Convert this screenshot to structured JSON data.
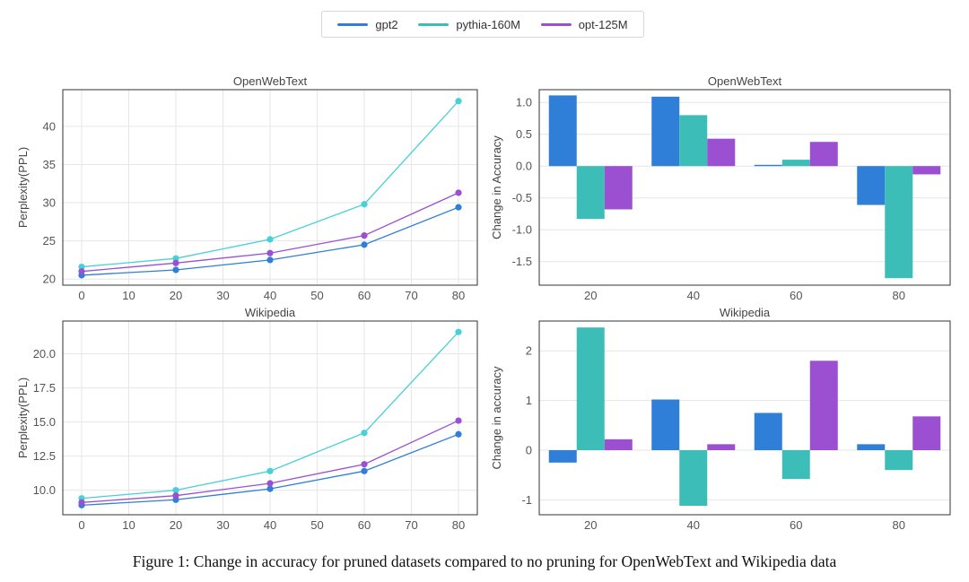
{
  "colors": {
    "gpt2": "#2f7ed8",
    "pythia": "#3dbdb8",
    "opt": "#9b4fd1",
    "pythia_line": "#46d0d8",
    "grid": "#e6e6e6"
  },
  "legend": [
    {
      "label": "gpt2",
      "color": "#2f7ed8"
    },
    {
      "label": "pythia-160M",
      "color": "#3dbdb8"
    },
    {
      "label": "opt-125M",
      "color": "#9b4fd1"
    }
  ],
  "caption": "Figure 1: Change in accuracy for pruned datasets compared to no pruning for OpenWebText and Wikipedia data",
  "chart_data": [
    {
      "id": "ppl-owt",
      "type": "line",
      "title": "OpenWebText",
      "xlabel": "",
      "ylabel": "Perplexity(PPL)",
      "x": [
        0,
        20,
        40,
        60,
        80
      ],
      "xlim": [
        -4,
        84
      ],
      "xticks": [
        0,
        10,
        20,
        30,
        40,
        50,
        60,
        70,
        80
      ],
      "ylim": [
        19.2,
        44.8
      ],
      "yticks": [
        20,
        25,
        30,
        35,
        40
      ],
      "grid": true,
      "series": [
        {
          "name": "gpt2",
          "values": [
            20.5,
            21.2,
            22.5,
            24.5,
            29.4
          ]
        },
        {
          "name": "pythia-160M",
          "values": [
            21.6,
            22.7,
            25.2,
            29.8,
            43.3
          ]
        },
        {
          "name": "opt-125M",
          "values": [
            21.0,
            22.1,
            23.4,
            25.7,
            31.3
          ]
        }
      ]
    },
    {
      "id": "acc-owt",
      "type": "bar",
      "title": "OpenWebText",
      "xlabel": "",
      "ylabel": "Change in Accuracy",
      "categories": [
        "20",
        "40",
        "60",
        "80"
      ],
      "ylim": [
        -1.87,
        1.2
      ],
      "yticks": [
        -1.5,
        -1.0,
        -0.5,
        0.0,
        0.5,
        1.0
      ],
      "ytick_format": 1,
      "grid": true,
      "series": [
        {
          "name": "gpt2",
          "values": [
            1.11,
            1.09,
            0.02,
            -0.61
          ]
        },
        {
          "name": "pythia-160M",
          "values": [
            -0.83,
            0.8,
            0.1,
            -1.76
          ]
        },
        {
          "name": "opt-125M",
          "values": [
            -0.68,
            0.43,
            0.38,
            -0.13
          ]
        }
      ]
    },
    {
      "id": "ppl-wiki",
      "type": "line",
      "title": "Wikipedia",
      "xlabel": "",
      "ylabel": "Perplexity(PPL)",
      "x": [
        0,
        20,
        40,
        60,
        80
      ],
      "xlim": [
        -4,
        84
      ],
      "xticks": [
        0,
        10,
        20,
        30,
        40,
        50,
        60,
        70,
        80
      ],
      "ylim": [
        8.2,
        22.4
      ],
      "yticks": [
        10.0,
        12.5,
        15.0,
        17.5,
        20.0
      ],
      "ytick_format": 1,
      "grid": true,
      "series": [
        {
          "name": "gpt2",
          "values": [
            8.9,
            9.3,
            10.1,
            11.4,
            14.1
          ]
        },
        {
          "name": "pythia-160M",
          "values": [
            9.4,
            10.0,
            11.4,
            14.2,
            21.6
          ]
        },
        {
          "name": "opt-125M",
          "values": [
            9.1,
            9.6,
            10.5,
            11.9,
            15.1
          ]
        }
      ]
    },
    {
      "id": "acc-wiki",
      "type": "bar",
      "title": "Wikipedia",
      "xlabel": "",
      "ylabel": "Change in  accuracy",
      "categories": [
        "20",
        "40",
        "60",
        "80"
      ],
      "ylim": [
        -1.3,
        2.6
      ],
      "yticks": [
        -1,
        0,
        1,
        2
      ],
      "ytick_format": 0,
      "grid": true,
      "series": [
        {
          "name": "gpt2",
          "values": [
            -0.25,
            1.02,
            0.75,
            0.12
          ]
        },
        {
          "name": "pythia-160M",
          "values": [
            2.47,
            -1.12,
            -0.58,
            -0.4
          ]
        },
        {
          "name": "opt-125M",
          "values": [
            0.22,
            0.12,
            1.8,
            0.68
          ]
        }
      ]
    }
  ]
}
